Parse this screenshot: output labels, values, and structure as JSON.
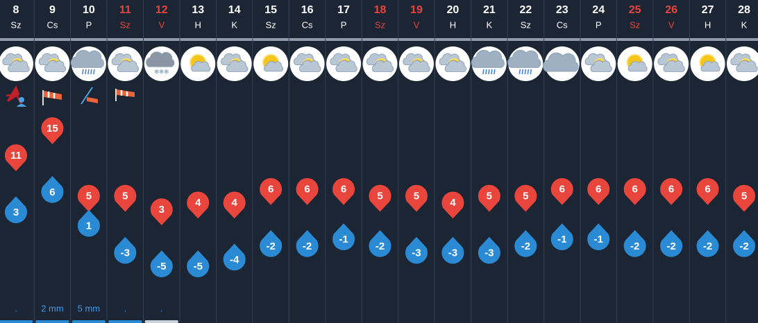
{
  "days": [
    {
      "day": "8",
      "weekday": "Sz",
      "max": 11,
      "min": 3,
      "sky": "partly-cloudy",
      "precip": "."
    },
    {
      "day": "9",
      "weekday": "Cs",
      "max": 15,
      "min": 6,
      "sky": "partly-cloudy",
      "precip": "2 mm"
    },
    {
      "day": "10",
      "weekday": "P",
      "max": 5,
      "min": 1,
      "sky": "rain",
      "precip": "5 mm"
    },
    {
      "day": "11",
      "weekday": "Sz",
      "weekend": true,
      "max": 5,
      "min": -3,
      "sky": "partly-cloudy",
      "precip": "."
    },
    {
      "day": "12",
      "weekday": "V",
      "weekend": true,
      "max": 3,
      "min": -5,
      "sky": "snow",
      "precip": "."
    },
    {
      "day": "13",
      "weekday": "H",
      "max": 4,
      "min": -5,
      "sky": "mostly-sunny"
    },
    {
      "day": "14",
      "weekday": "K",
      "max": 4,
      "min": -4,
      "sky": "partly-cloudy"
    },
    {
      "day": "15",
      "weekday": "Sz",
      "max": 6,
      "min": -2,
      "sky": "mostly-sunny"
    },
    {
      "day": "16",
      "weekday": "Cs",
      "max": 6,
      "min": -2,
      "sky": "partly-cloudy"
    },
    {
      "day": "17",
      "weekday": "P",
      "max": 6,
      "min": -1,
      "sky": "partly-cloudy"
    },
    {
      "day": "18",
      "weekday": "Sz",
      "weekend": true,
      "max": 5,
      "min": -2,
      "sky": "partly-cloudy"
    },
    {
      "day": "19",
      "weekday": "V",
      "weekend": true,
      "max": 5,
      "min": -3,
      "sky": "partly-cloudy"
    },
    {
      "day": "20",
      "weekday": "H",
      "max": 4,
      "min": -3,
      "sky": "partly-cloudy"
    },
    {
      "day": "21",
      "weekday": "K",
      "max": 5,
      "min": -3,
      "sky": "rain"
    },
    {
      "day": "22",
      "weekday": "Sz",
      "max": 5,
      "min": -2,
      "sky": "rain"
    },
    {
      "day": "23",
      "weekday": "Cs",
      "max": 6,
      "min": -1,
      "sky": "cloudy"
    },
    {
      "day": "24",
      "weekday": "P",
      "max": 6,
      "min": -1,
      "sky": "partly-cloudy"
    },
    {
      "day": "25",
      "weekday": "Sz",
      "weekend": true,
      "max": 6,
      "min": -2,
      "sky": "mostly-sunny"
    },
    {
      "day": "26",
      "weekday": "V",
      "weekend": true,
      "max": 6,
      "min": -2,
      "sky": "partly-cloudy"
    },
    {
      "day": "27",
      "weekday": "H",
      "max": 6,
      "min": -2,
      "sky": "mostly-sunny"
    },
    {
      "day": "28",
      "weekday": "K",
      "max": 5,
      "min": -2,
      "sky": "partly-cloudy"
    }
  ]
}
